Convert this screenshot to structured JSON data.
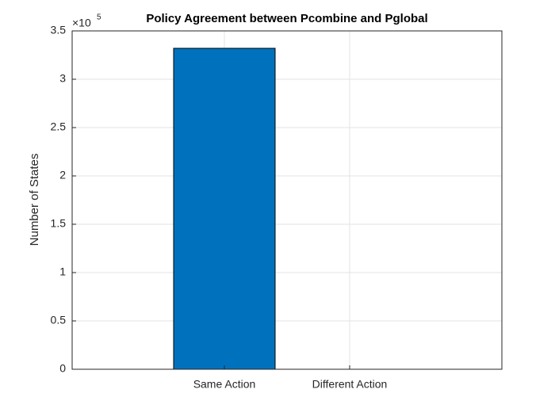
{
  "chart_data": {
    "type": "bar",
    "title": "Policy Agreement between Pcombine and Pglobal",
    "ylabel": "Number of States",
    "y_multiplier": {
      "base": "×10",
      "exponent": "5"
    },
    "categories": [
      "Same Action",
      "Different Action"
    ],
    "values": [
      332000,
      0
    ],
    "color": "#0072bd",
    "ylim": [
      0,
      350000
    ],
    "yticks": [
      0,
      {
        "value": 50000,
        "label": "0.5"
      },
      {
        "value": 100000,
        "label": "1"
      },
      {
        "value": 150000,
        "label": "1.5"
      },
      {
        "value": 200000,
        "label": "2"
      },
      {
        "value": 250000,
        "label": "2.5"
      },
      {
        "value": 300000,
        "label": "3"
      },
      {
        "value": 350000,
        "label": "3.5"
      }
    ],
    "grid": true
  }
}
